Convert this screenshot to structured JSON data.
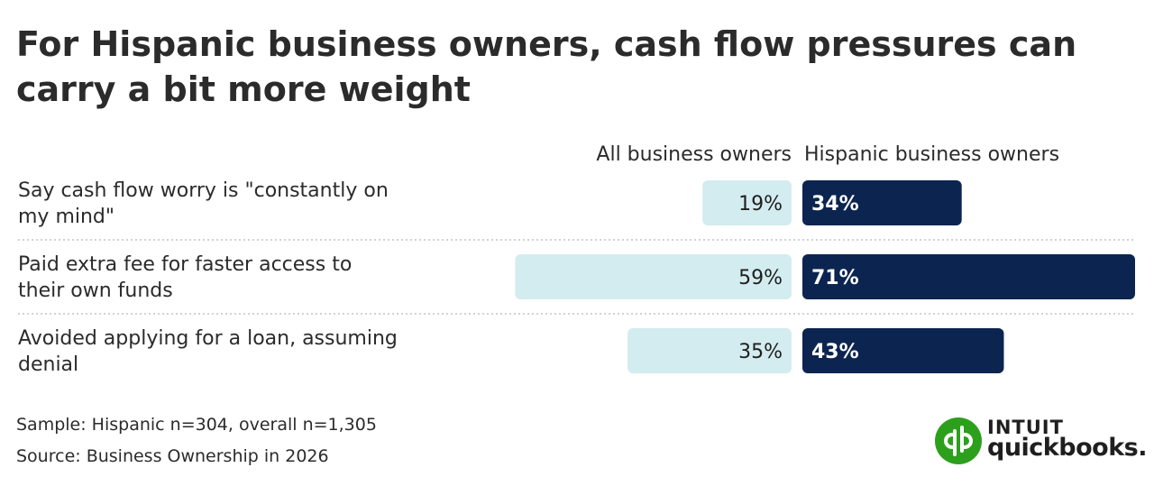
{
  "title": "For Hispanic business owners, cash flow pressures can carry a bit more weight",
  "chart_data": {
    "type": "bar",
    "orientation": "horizontal-back-to-back",
    "categories": [
      "Say cash flow worry is \"constantly on my mind\"",
      "Paid extra fee for faster access to their own funds",
      "Avoided applying for a loan, assuming denial"
    ],
    "series": [
      {
        "name": "All business owners",
        "values": [
          19,
          59,
          35
        ],
        "labels": [
          "19%",
          "59%",
          "35%"
        ],
        "color": "#d3ecef",
        "label_color": "#1f1f1f"
      },
      {
        "name": "Hispanic business owners",
        "values": [
          34,
          71,
          43
        ],
        "labels": [
          "34%",
          "71%",
          "43%"
        ],
        "color": "#0c2550",
        "label_color": "#ffffff"
      }
    ],
    "unit": "%",
    "xlim": [
      0,
      71
    ],
    "grid": false,
    "legend": "column headers above bars"
  },
  "footer": {
    "sample": "Sample: Hispanic n=304, overall n=1,305",
    "source": "Source: Business Ownership in 2026"
  },
  "logo": {
    "top": "INTUIT",
    "bottom": "quickbooks."
  },
  "colors": {
    "brand_green": "#2ca01c"
  }
}
